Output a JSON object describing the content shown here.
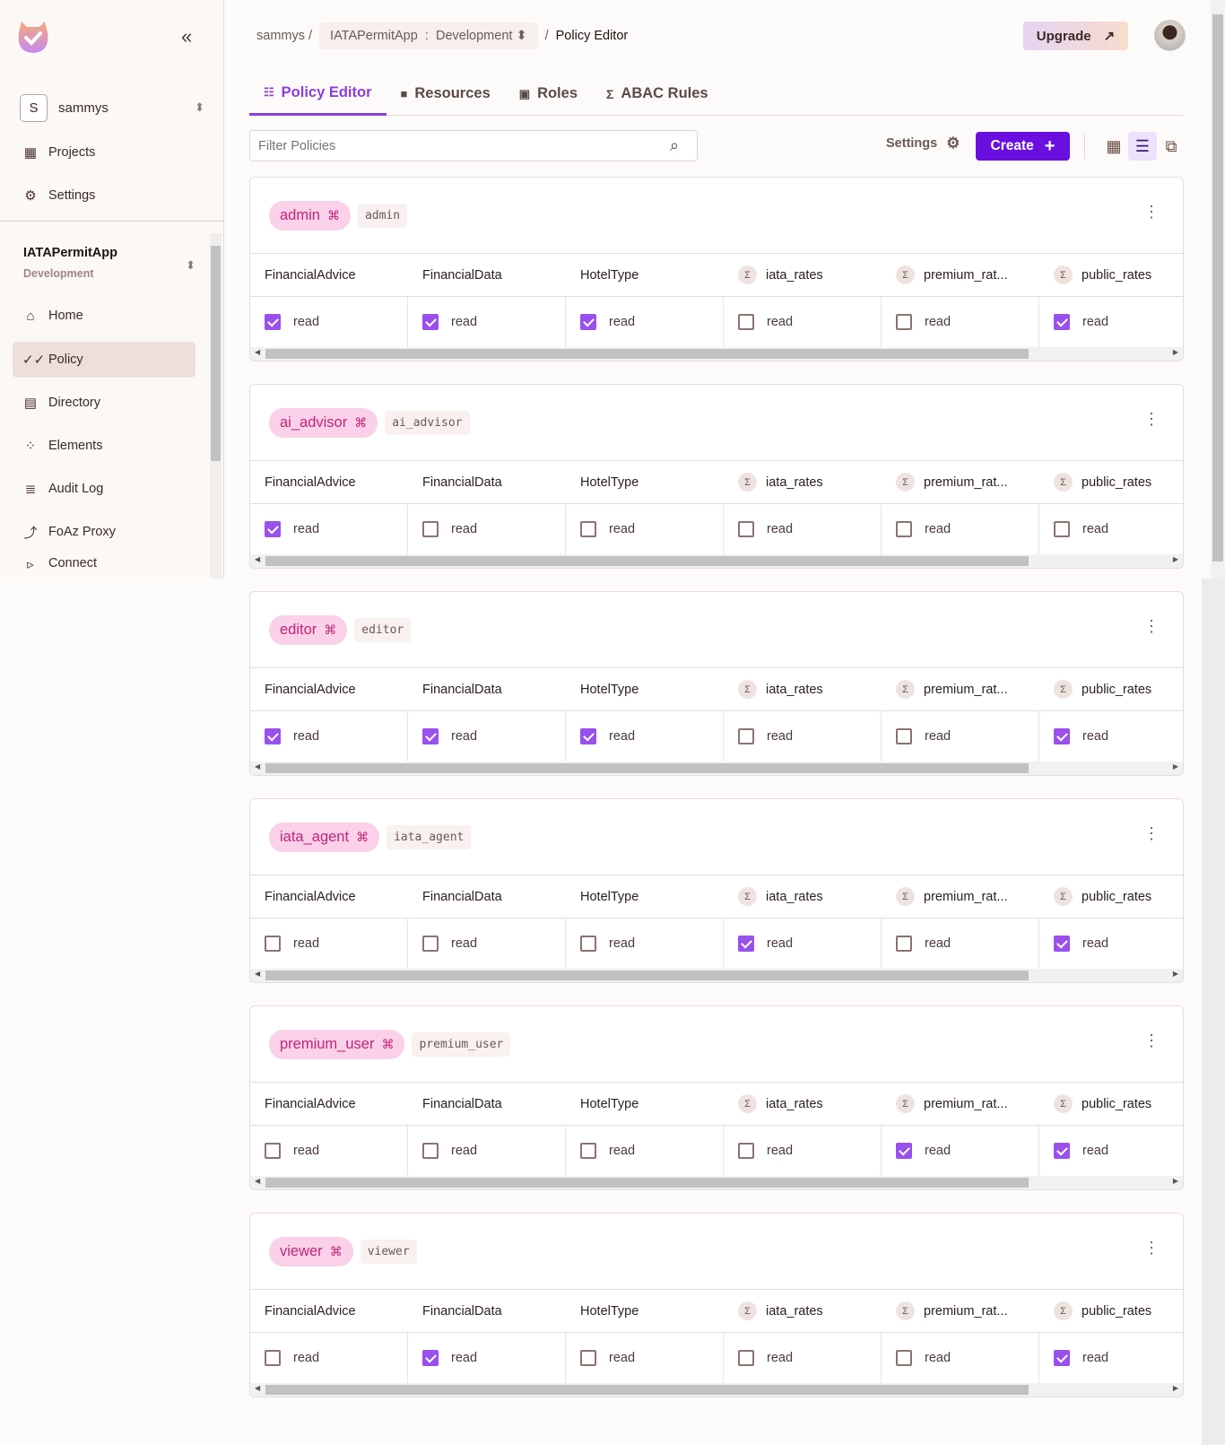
{
  "sidebar": {
    "org_initial": "S",
    "org_name": "sammys",
    "items_top": [
      {
        "label": "Projects",
        "icon": "grid-icon"
      },
      {
        "label": "Settings",
        "icon": "gear-icon"
      }
    ],
    "app_name": "IATAPermitApp",
    "app_env": "Development",
    "items": [
      {
        "label": "Home",
        "icon": "home-icon"
      },
      {
        "label": "Policy",
        "icon": "policy-check-icon",
        "active": true
      },
      {
        "label": "Directory",
        "icon": "directory-icon"
      },
      {
        "label": "Elements",
        "icon": "elements-icon"
      },
      {
        "label": "Audit Log",
        "icon": "audit-log-icon"
      },
      {
        "label": "FoAz Proxy",
        "icon": "proxy-icon"
      },
      {
        "label": "Connect",
        "icon": "terminal-icon"
      }
    ]
  },
  "header": {
    "crumb_org": "sammys",
    "crumb_app": "IATAPermitApp",
    "crumb_env": "Development",
    "crumb_page": "Policy Editor",
    "upgrade": "Upgrade"
  },
  "tabs": [
    {
      "label": "Policy Editor",
      "active": true
    },
    {
      "label": "Resources"
    },
    {
      "label": "Roles"
    },
    {
      "label": "ABAC Rules"
    }
  ],
  "toolbar": {
    "filter_placeholder": "Filter Policies",
    "settings": "Settings",
    "create": "Create"
  },
  "columns": [
    {
      "label": "FinancialAdvice",
      "abac": false
    },
    {
      "label": "FinancialData",
      "abac": false
    },
    {
      "label": "HotelType",
      "abac": false
    },
    {
      "label": "iata_rates",
      "abac": true
    },
    {
      "label": "premium_rat...",
      "abac": true
    },
    {
      "label": "public_rates",
      "abac": true
    }
  ],
  "action": "read",
  "accent": "#6b0fe0",
  "roles": [
    {
      "name": "admin",
      "key": "admin",
      "perms": [
        true,
        true,
        true,
        false,
        false,
        true
      ]
    },
    {
      "name": "ai_advisor",
      "key": "ai_advisor",
      "perms": [
        true,
        false,
        false,
        false,
        false,
        false
      ]
    },
    {
      "name": "editor",
      "key": "editor",
      "perms": [
        true,
        true,
        true,
        false,
        false,
        true
      ]
    },
    {
      "name": "iata_agent",
      "key": "iata_agent",
      "perms": [
        false,
        false,
        false,
        true,
        false,
        true
      ]
    },
    {
      "name": "premium_user",
      "key": "premium_user",
      "perms": [
        false,
        false,
        false,
        false,
        true,
        true
      ]
    },
    {
      "name": "viewer",
      "key": "viewer",
      "perms": [
        false,
        true,
        false,
        false,
        false,
        true
      ]
    }
  ]
}
